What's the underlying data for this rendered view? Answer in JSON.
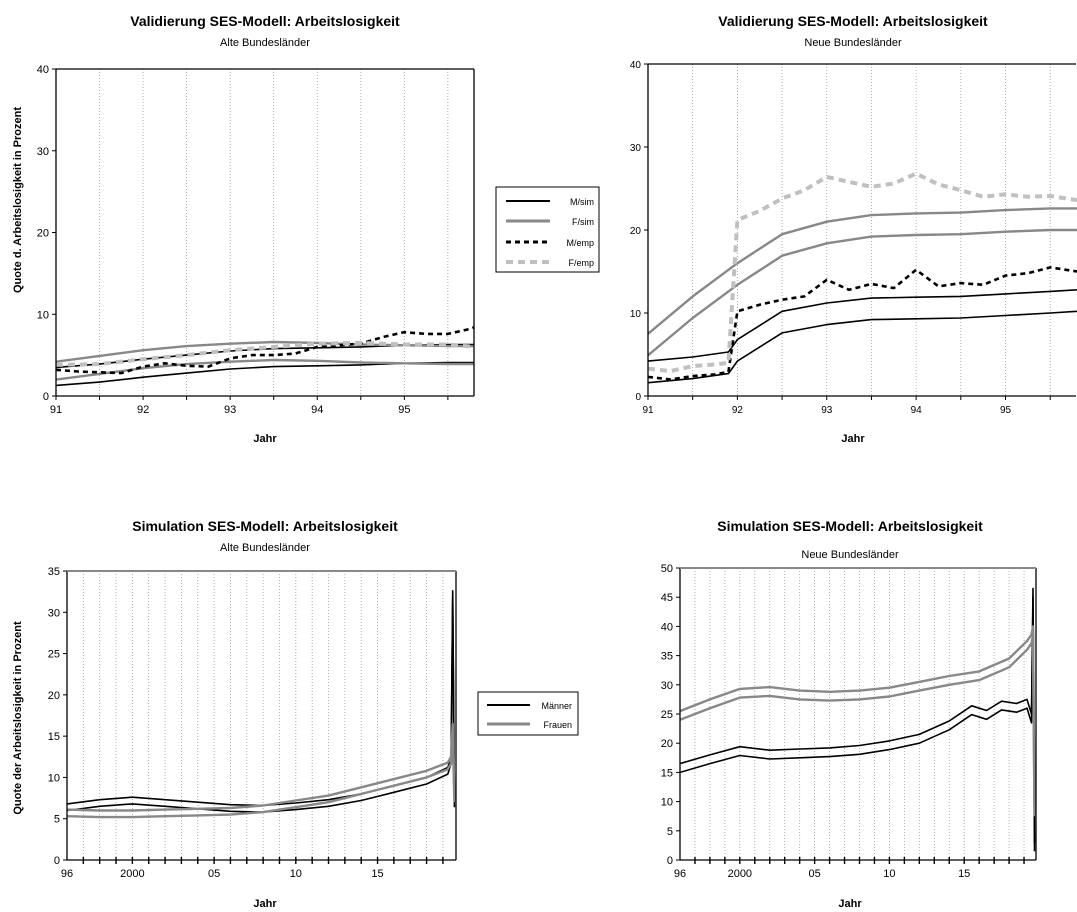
{
  "chart_data": [
    {
      "type": "line",
      "title": "Validierung SES-Modell: Arbeitslosigkeit",
      "subtitle": "Alte Bundesländer",
      "xlabel": "Jahr",
      "ylabel": "Quote d. Arbeitslosigkeit in Prozent",
      "x_ticks": [
        "91",
        "92",
        "93",
        "94",
        "95"
      ],
      "xlim": [
        91,
        95.8
      ],
      "ylim": [
        0,
        40
      ],
      "y_ticks": [
        0,
        10,
        20,
        30,
        40
      ],
      "grid": "vertical dotted, every half year",
      "legend": {
        "position": "right",
        "entries": [
          "M/sim",
          "F/sim",
          "M/emp",
          "F/emp"
        ]
      },
      "series": [
        {
          "name": "M/sim",
          "color": "#000000",
          "style": "solid",
          "band": true,
          "x": [
            91,
            91.5,
            92,
            92.5,
            93,
            93.5,
            94,
            94.5,
            95,
            95.5,
            95.8
          ],
          "values": [
            3.5,
            3.9,
            4.5,
            5.0,
            5.5,
            5.8,
            5.9,
            6.0,
            6.2,
            6.3,
            6.3
          ]
        },
        {
          "name": "F/sim",
          "color": "#888888",
          "style": "solid",
          "band": true,
          "x": [
            91,
            91.5,
            92,
            92.5,
            93,
            93.5,
            94,
            94.5,
            95,
            95.5,
            95.8
          ],
          "values": [
            4.2,
            4.9,
            5.6,
            6.1,
            6.4,
            6.6,
            6.5,
            6.3,
            6.2,
            6.1,
            6.1
          ]
        },
        {
          "name": "M/emp",
          "color": "#000000",
          "style": "dashed",
          "x": [
            91,
            91.25,
            91.5,
            91.75,
            92,
            92.25,
            92.5,
            92.75,
            93,
            93.25,
            93.5,
            93.75,
            94,
            94.25,
            94.5,
            94.75,
            95,
            95.25,
            95.5,
            95.75,
            95.8
          ],
          "values": [
            3.2,
            3.0,
            2.9,
            2.8,
            3.6,
            4.0,
            3.7,
            3.6,
            4.6,
            5.0,
            5.0,
            5.2,
            6.0,
            6.2,
            6.4,
            7.2,
            7.8,
            7.6,
            7.6,
            8.2,
            8.4
          ]
        },
        {
          "name": "F/emp",
          "color": "#c0c0c0",
          "style": "dashed",
          "x": [
            91,
            91.5,
            92,
            92.5,
            93,
            93.5,
            94,
            94.5,
            95,
            95.5,
            95.8
          ],
          "values": [
            3.8,
            3.9,
            4.5,
            5.0,
            5.6,
            6.0,
            6.4,
            6.5,
            6.3,
            6.3,
            6.0
          ]
        }
      ]
    },
    {
      "type": "line",
      "title": "Validierung SES-Modell: Arbeitslosigkeit",
      "subtitle": "Neue Bundesländer",
      "xlabel": "Jahr",
      "ylabel": "",
      "x_ticks": [
        "91",
        "92",
        "93",
        "94",
        "95"
      ],
      "xlim": [
        91,
        95.8
      ],
      "ylim": [
        0,
        40
      ],
      "y_ticks": [
        0,
        10,
        20,
        30,
        40
      ],
      "grid": "vertical dotted, every half year",
      "series": [
        {
          "name": "M/sim",
          "color": "#000000",
          "style": "solid",
          "band": true,
          "x": [
            91,
            91.5,
            91.9,
            92,
            92.5,
            93,
            93.5,
            94,
            94.5,
            95,
            95.5,
            95.8
          ],
          "values": [
            4.2,
            4.7,
            5.3,
            6.8,
            10.2,
            11.2,
            11.8,
            11.9,
            12.0,
            12.3,
            12.6,
            12.8
          ]
        },
        {
          "name": "F/sim",
          "color": "#888888",
          "style": "solid",
          "band": true,
          "x": [
            91,
            91.5,
            92,
            92.5,
            93,
            93.5,
            94,
            94.5,
            95,
            95.5,
            95.8
          ],
          "values": [
            7.5,
            12.0,
            16.0,
            19.5,
            21.0,
            21.8,
            22.0,
            22.1,
            22.4,
            22.6,
            22.6
          ]
        },
        {
          "name": "M/emp",
          "color": "#000000",
          "style": "dashed",
          "x": [
            91,
            91.25,
            91.5,
            91.75,
            91.9,
            92,
            92.25,
            92.5,
            92.75,
            93,
            93.25,
            93.5,
            93.75,
            94,
            94.25,
            94.5,
            94.75,
            95,
            95.25,
            95.5,
            95.8
          ],
          "values": [
            2.3,
            2.0,
            2.4,
            2.6,
            2.9,
            10.2,
            11.0,
            11.6,
            12.0,
            14.0,
            12.8,
            13.5,
            13.0,
            15.2,
            13.2,
            13.6,
            13.4,
            14.5,
            14.8,
            15.5,
            15.0
          ]
        },
        {
          "name": "F/emp",
          "color": "#c0c0c0",
          "style": "dashed",
          "x": [
            91,
            91.25,
            91.5,
            91.75,
            91.9,
            92,
            92.25,
            92.5,
            92.75,
            93,
            93.25,
            93.5,
            93.75,
            94,
            94.25,
            94.5,
            94.75,
            95,
            95.25,
            95.5,
            95.8
          ],
          "values": [
            3.3,
            3.0,
            3.6,
            3.8,
            4.0,
            21.2,
            22.3,
            23.8,
            24.8,
            26.4,
            25.8,
            25.2,
            25.6,
            26.8,
            25.5,
            24.8,
            24.0,
            24.3,
            24.0,
            24.1,
            23.6
          ]
        }
      ]
    },
    {
      "type": "line",
      "title": "Simulation SES-Modell: Arbeitslosigkeit",
      "subtitle": "Alte Bundesländer",
      "xlabel": "Jahr",
      "ylabel": "Quote der Arbeitslosigkeit in Prozent",
      "x_ticks": [
        "96",
        "2000",
        "05",
        "10",
        "15"
      ],
      "x_tick_values": [
        1996,
        2000,
        2005,
        2010,
        2015
      ],
      "xlim": [
        1996,
        2019.8
      ],
      "ylim": [
        0,
        35
      ],
      "y_ticks": [
        0,
        5,
        10,
        15,
        20,
        25,
        30,
        35
      ],
      "grid": "vertical dotted, every year",
      "legend": {
        "position": "right",
        "entries": [
          "Männer",
          "Frauen"
        ]
      },
      "series": [
        {
          "name": "Männer",
          "color": "#000000",
          "style": "solid",
          "band": true,
          "x": [
            1996,
            1998,
            2000,
            2002,
            2004,
            2006,
            2008,
            2010,
            2012,
            2014,
            2016,
            2018,
            2019.3,
            2019.5,
            2019.6,
            2019.7
          ],
          "values": [
            6.8,
            7.3,
            7.6,
            7.3,
            7.0,
            6.7,
            6.6,
            6.9,
            7.3,
            8.0,
            9.0,
            10.0,
            11.2,
            12.5,
            32.6,
            7.2
          ]
        },
        {
          "name": "Frauen",
          "color": "#888888",
          "style": "solid",
          "band": true,
          "x": [
            1996,
            1998,
            2000,
            2002,
            2004,
            2006,
            2008,
            2010,
            2012,
            2014,
            2016,
            2018,
            2019.3,
            2019.5,
            2019.6,
            2019.7
          ],
          "values": [
            6.1,
            6.0,
            6.0,
            6.1,
            6.2,
            6.3,
            6.6,
            7.2,
            7.8,
            8.8,
            9.8,
            10.8,
            11.8,
            12.5,
            16.5,
            7.8
          ]
        }
      ]
    },
    {
      "type": "line",
      "title": "Simulation SES-Modell: Arbeitslosigkeit",
      "subtitle": "Neue Bundesländer",
      "xlabel": "Jahr",
      "ylabel": "",
      "x_ticks": [
        "96",
        "2000",
        "05",
        "10",
        "15"
      ],
      "x_tick_values": [
        1996,
        2000,
        2005,
        2010,
        2015
      ],
      "xlim": [
        1996,
        2019.8
      ],
      "ylim": [
        0,
        50
      ],
      "y_ticks": [
        0,
        5,
        10,
        15,
        20,
        25,
        30,
        35,
        40,
        45,
        50
      ],
      "grid": "vertical dotted, every year",
      "series": [
        {
          "name": "Männer",
          "color": "#000000",
          "style": "solid",
          "band": true,
          "x": [
            1996,
            1998,
            2000,
            2002,
            2004,
            2006,
            2008,
            2010,
            2012,
            2014,
            2015.5,
            2016.5,
            2017.5,
            2018.5,
            2019.2,
            2019.5,
            2019.6,
            2019.7
          ],
          "values": [
            16.5,
            18.0,
            19.4,
            18.8,
            19.0,
            19.2,
            19.6,
            20.4,
            21.5,
            23.8,
            26.4,
            25.6,
            27.2,
            26.8,
            27.5,
            25.0,
            46.5,
            3.0
          ]
        },
        {
          "name": "Frauen",
          "color": "#888888",
          "style": "solid",
          "band": true,
          "x": [
            1996,
            1998,
            2000,
            2002,
            2004,
            2006,
            2008,
            2010,
            2012,
            2014,
            2016,
            2018,
            2019.2,
            2019.5,
            2019.6,
            2019.7
          ],
          "values": [
            25.5,
            27.5,
            29.3,
            29.6,
            29.0,
            28.8,
            29.0,
            29.5,
            30.5,
            31.5,
            32.3,
            34.5,
            37.5,
            38.6,
            40.0,
            9.0
          ]
        }
      ]
    }
  ]
}
